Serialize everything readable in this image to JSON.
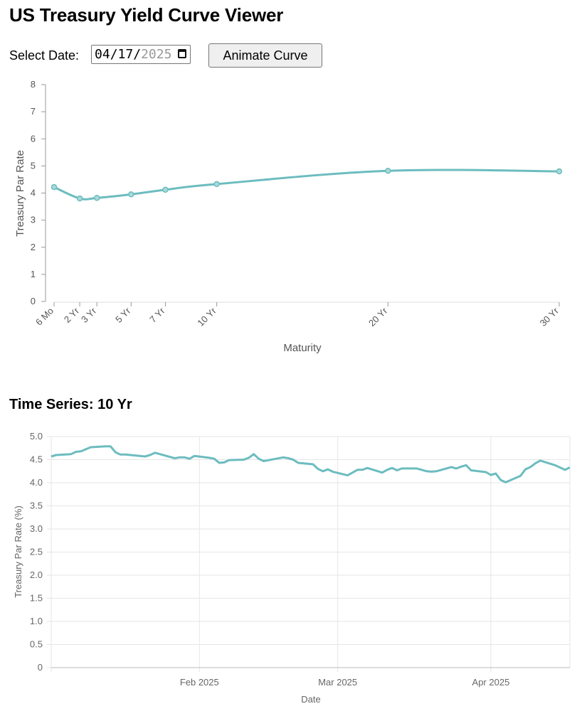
{
  "page": {
    "title": "US Treasury Yield Curve Viewer"
  },
  "controls": {
    "date_label": "Select Date:",
    "date_month": "04",
    "date_day": "17",
    "date_year": "2025",
    "animate_label": "Animate Curve"
  },
  "colors": {
    "line": "#6cbcbf",
    "grid": "#e6e6e6",
    "axis": "#999999"
  },
  "icons": {
    "date_picker": "calendar-icon"
  },
  "chart_data": [
    {
      "type": "line",
      "title": "",
      "xlabel": "Maturity",
      "ylabel": "Treasury Par Rate",
      "ylim": [
        0,
        8
      ],
      "yticks": [
        0,
        1,
        2,
        3,
        4,
        5,
        6,
        7,
        8
      ],
      "xlim_years": [
        0.5,
        30
      ],
      "categories": [
        "6 Mo",
        "2 Yr",
        "3 Yr",
        "5 Yr",
        "7 Yr",
        "10 Yr",
        "20 Yr",
        "30 Yr"
      ],
      "x_years": [
        0.5,
        2,
        3,
        5,
        7,
        10,
        20,
        30
      ],
      "values": [
        4.22,
        3.8,
        3.82,
        3.95,
        4.12,
        4.33,
        4.82,
        4.8
      ],
      "grid": false
    },
    {
      "type": "line",
      "title": "Time Series: 10 Yr",
      "xlabel": "Date",
      "ylabel": "Treasury Par Rate (%)",
      "ylim": [
        0,
        5
      ],
      "yticks": [
        "0",
        "0.5",
        "1.0",
        "1.5",
        "2.0",
        "2.5",
        "3.0",
        "3.5",
        "4.0",
        "4.5",
        "5.0"
      ],
      "xlim": [
        "2025-01-02",
        "2025-04-17"
      ],
      "xticks": [
        {
          "date": "2025-02-01",
          "label": "Feb 2025"
        },
        {
          "date": "2025-03-01",
          "label": "Mar 2025"
        },
        {
          "date": "2025-04-01",
          "label": "Apr 2025"
        }
      ],
      "grid": true,
      "series": [
        {
          "dates": [
            "2025-01-02",
            "2025-01-03",
            "2025-01-06",
            "2025-01-07",
            "2025-01-08",
            "2025-01-10",
            "2025-01-13",
            "2025-01-14",
            "2025-01-15",
            "2025-01-16",
            "2025-01-17",
            "2025-01-21",
            "2025-01-22",
            "2025-01-23",
            "2025-01-24",
            "2025-01-27",
            "2025-01-28",
            "2025-01-29",
            "2025-01-30",
            "2025-01-31",
            "2025-02-03",
            "2025-02-04",
            "2025-02-05",
            "2025-02-06",
            "2025-02-07",
            "2025-02-10",
            "2025-02-11",
            "2025-02-12",
            "2025-02-13",
            "2025-02-14",
            "2025-02-18",
            "2025-02-19",
            "2025-02-20",
            "2025-02-21",
            "2025-02-24",
            "2025-02-25",
            "2025-02-26",
            "2025-02-27",
            "2025-02-28",
            "2025-03-03",
            "2025-03-04",
            "2025-03-05",
            "2025-03-06",
            "2025-03-07",
            "2025-03-10",
            "2025-03-11",
            "2025-03-12",
            "2025-03-13",
            "2025-03-14",
            "2025-03-17",
            "2025-03-18",
            "2025-03-19",
            "2025-03-20",
            "2025-03-21",
            "2025-03-24",
            "2025-03-25",
            "2025-03-26",
            "2025-03-27",
            "2025-03-28",
            "2025-03-31",
            "2025-04-01",
            "2025-04-02",
            "2025-04-03",
            "2025-04-04",
            "2025-04-07",
            "2025-04-08",
            "2025-04-09",
            "2025-04-10",
            "2025-04-11",
            "2025-04-14",
            "2025-04-15",
            "2025-04-16",
            "2025-04-17"
          ],
          "values": [
            4.57,
            4.6,
            4.62,
            4.67,
            4.68,
            4.77,
            4.79,
            4.79,
            4.66,
            4.61,
            4.61,
            4.57,
            4.6,
            4.65,
            4.62,
            4.53,
            4.55,
            4.55,
            4.52,
            4.58,
            4.54,
            4.52,
            4.43,
            4.44,
            4.49,
            4.5,
            4.54,
            4.62,
            4.52,
            4.47,
            4.55,
            4.53,
            4.5,
            4.43,
            4.4,
            4.3,
            4.25,
            4.29,
            4.24,
            4.16,
            4.22,
            4.28,
            4.28,
            4.32,
            4.22,
            4.28,
            4.32,
            4.27,
            4.31,
            4.31,
            4.28,
            4.25,
            4.24,
            4.25,
            4.34,
            4.31,
            4.35,
            4.38,
            4.27,
            4.23,
            4.17,
            4.2,
            4.06,
            4.01,
            4.15,
            4.29,
            4.34,
            4.42,
            4.48,
            4.38,
            4.33,
            4.28,
            4.33
          ]
        }
      ]
    }
  ]
}
